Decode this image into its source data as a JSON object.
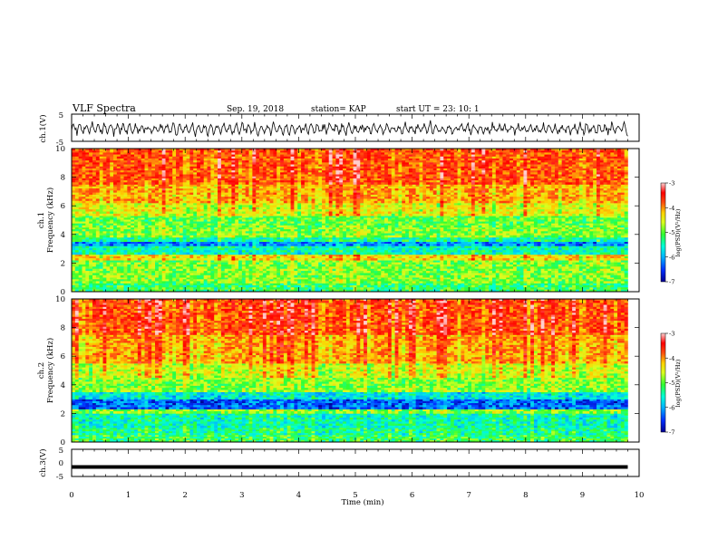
{
  "header": {
    "title": "VLF Spectra",
    "date": "Sep. 19, 2018",
    "station": "station= KAP",
    "start": "start  UT  =   23: 10: 1"
  },
  "chart_data": [
    {
      "type": "line",
      "name": "ch1-waveform",
      "ylabel": "ch.1(V)",
      "ylim": [
        -5,
        5
      ],
      "yticks": [
        "5",
        "-5"
      ],
      "xlim": [
        0,
        10
      ],
      "data_span": [
        0,
        9.8
      ]
    },
    {
      "type": "heatmap",
      "name": "ch1-spectrogram",
      "ylabel_top": "ch.1",
      "ylabel": "Frequency (kHz)",
      "ylim": [
        0,
        10
      ],
      "yticks": [
        "0",
        "2",
        "4",
        "6",
        "8",
        "10"
      ],
      "xlim": [
        0,
        10
      ],
      "data_span": [
        0,
        9.8
      ],
      "colorbar": {
        "label": "log(PSD)(V²/Hz)",
        "range": [
          -7,
          -3
        ],
        "ticks": [
          "-3",
          "-4",
          "-5",
          "-6",
          "-7"
        ]
      },
      "bands": [
        {
          "f": [
            0.0,
            0.6
          ],
          "level": -5.3
        },
        {
          "f": [
            0.6,
            1.0
          ],
          "level": -5.0
        },
        {
          "f": [
            1.0,
            2.2
          ],
          "level": -5.0
        },
        {
          "f": [
            2.2,
            2.6
          ],
          "level": -4.4
        },
        {
          "f": [
            2.6,
            3.2
          ],
          "level": -5.6
        },
        {
          "f": [
            3.2,
            3.5
          ],
          "level": -6.2
        },
        {
          "f": [
            3.5,
            3.8
          ],
          "level": -5.5
        },
        {
          "f": [
            3.8,
            4.5
          ],
          "level": -5.0
        },
        {
          "f": [
            4.5,
            5.3
          ],
          "level": -5.1
        },
        {
          "f": [
            5.3,
            6.2
          ],
          "level": -4.6
        },
        {
          "f": [
            6.2,
            7.5
          ],
          "level": -4.2
        },
        {
          "f": [
            7.5,
            10.0
          ],
          "level": -3.8
        }
      ]
    },
    {
      "type": "heatmap",
      "name": "ch2-spectrogram",
      "ylabel_top": "ch.2",
      "ylabel": "Frequency (kHz)",
      "ylim": [
        0,
        10
      ],
      "yticks": [
        "0",
        "2",
        "4",
        "6",
        "8",
        "10"
      ],
      "xlim": [
        0,
        10
      ],
      "data_span": [
        0,
        9.8
      ],
      "colorbar": {
        "label": "log(PSD)(V²/Hz)",
        "range": [
          -7,
          -3
        ],
        "ticks": [
          "-3",
          "-4",
          "-5",
          "-6",
          "-7"
        ]
      },
      "bands": [
        {
          "f": [
            0.0,
            0.5
          ],
          "level": -5.3
        },
        {
          "f": [
            0.5,
            1.0
          ],
          "level": -5.5
        },
        {
          "f": [
            1.0,
            2.0
          ],
          "level": -5.6
        },
        {
          "f": [
            2.0,
            2.3
          ],
          "level": -5.0
        },
        {
          "f": [
            2.3,
            3.0
          ],
          "level": -6.4
        },
        {
          "f": [
            3.0,
            3.5
          ],
          "level": -5.8
        },
        {
          "f": [
            3.5,
            4.5
          ],
          "level": -5.0
        },
        {
          "f": [
            4.5,
            5.5
          ],
          "level": -4.7
        },
        {
          "f": [
            5.5,
            7.5
          ],
          "level": -4.2
        },
        {
          "f": [
            7.5,
            10.0
          ],
          "level": -3.8
        }
      ]
    },
    {
      "type": "line",
      "name": "ch3-waveform",
      "ylabel": "ch.3(V)",
      "ylim": [
        -5,
        5
      ],
      "yticks": [
        "5",
        "0",
        "-5"
      ],
      "xlim": [
        0,
        10
      ],
      "data_span": [
        0,
        9.8
      ],
      "value": -1.5
    }
  ],
  "xaxis": {
    "label": "Time (min)",
    "ticks": [
      "0",
      "1",
      "2",
      "3",
      "4",
      "5",
      "6",
      "7",
      "8",
      "9",
      "10"
    ]
  },
  "colormap": [
    "#000090",
    "#0030ff",
    "#00b4ff",
    "#00ffd8",
    "#30ff30",
    "#d8ff20",
    "#ffd000",
    "#ff5010",
    "#ff0000",
    "#ffd0d0"
  ]
}
